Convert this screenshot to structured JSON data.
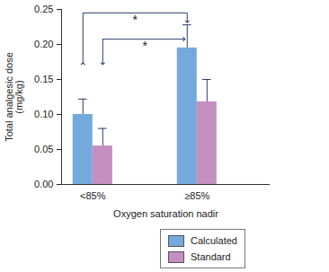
{
  "chart_data": {
    "type": "bar",
    "categories": [
      "<85%",
      "≥85%"
    ],
    "series": [
      {
        "name": "Calculated",
        "color": "#74a9db",
        "values": [
          0.1,
          0.195
        ],
        "errors": [
          0.022,
          0.033
        ]
      },
      {
        "name": "Standard",
        "color": "#c48fc0",
        "values": [
          0.055,
          0.118
        ],
        "errors": [
          0.025,
          0.032
        ]
      }
    ],
    "x_label": "Oxygen saturation nadir",
    "y_label": "Total analgesic dose\n(mg/kg)",
    "ylim": [
      0,
      0.25
    ],
    "yticks": [
      {
        "value": 0,
        "label": "0.00"
      },
      {
        "value": 0.05,
        "label": "0.05"
      },
      {
        "value": 0.1,
        "label": "0.10"
      },
      {
        "value": 0.15,
        "label": "0.15"
      },
      {
        "value": 0.2,
        "label": "0.20"
      },
      {
        "value": 0.25,
        "label": "0.25"
      }
    ],
    "annotations": [
      {
        "text": "*",
        "from": [
          "<85%",
          "Calculated"
        ],
        "to": [
          "≥85%",
          "Calculated"
        ]
      },
      {
        "text": "*",
        "from": [
          "<85%",
          "Standard"
        ],
        "to": [
          "≥85%",
          "Calculated"
        ]
      }
    ],
    "legend": "bottom",
    "grid": false
  }
}
